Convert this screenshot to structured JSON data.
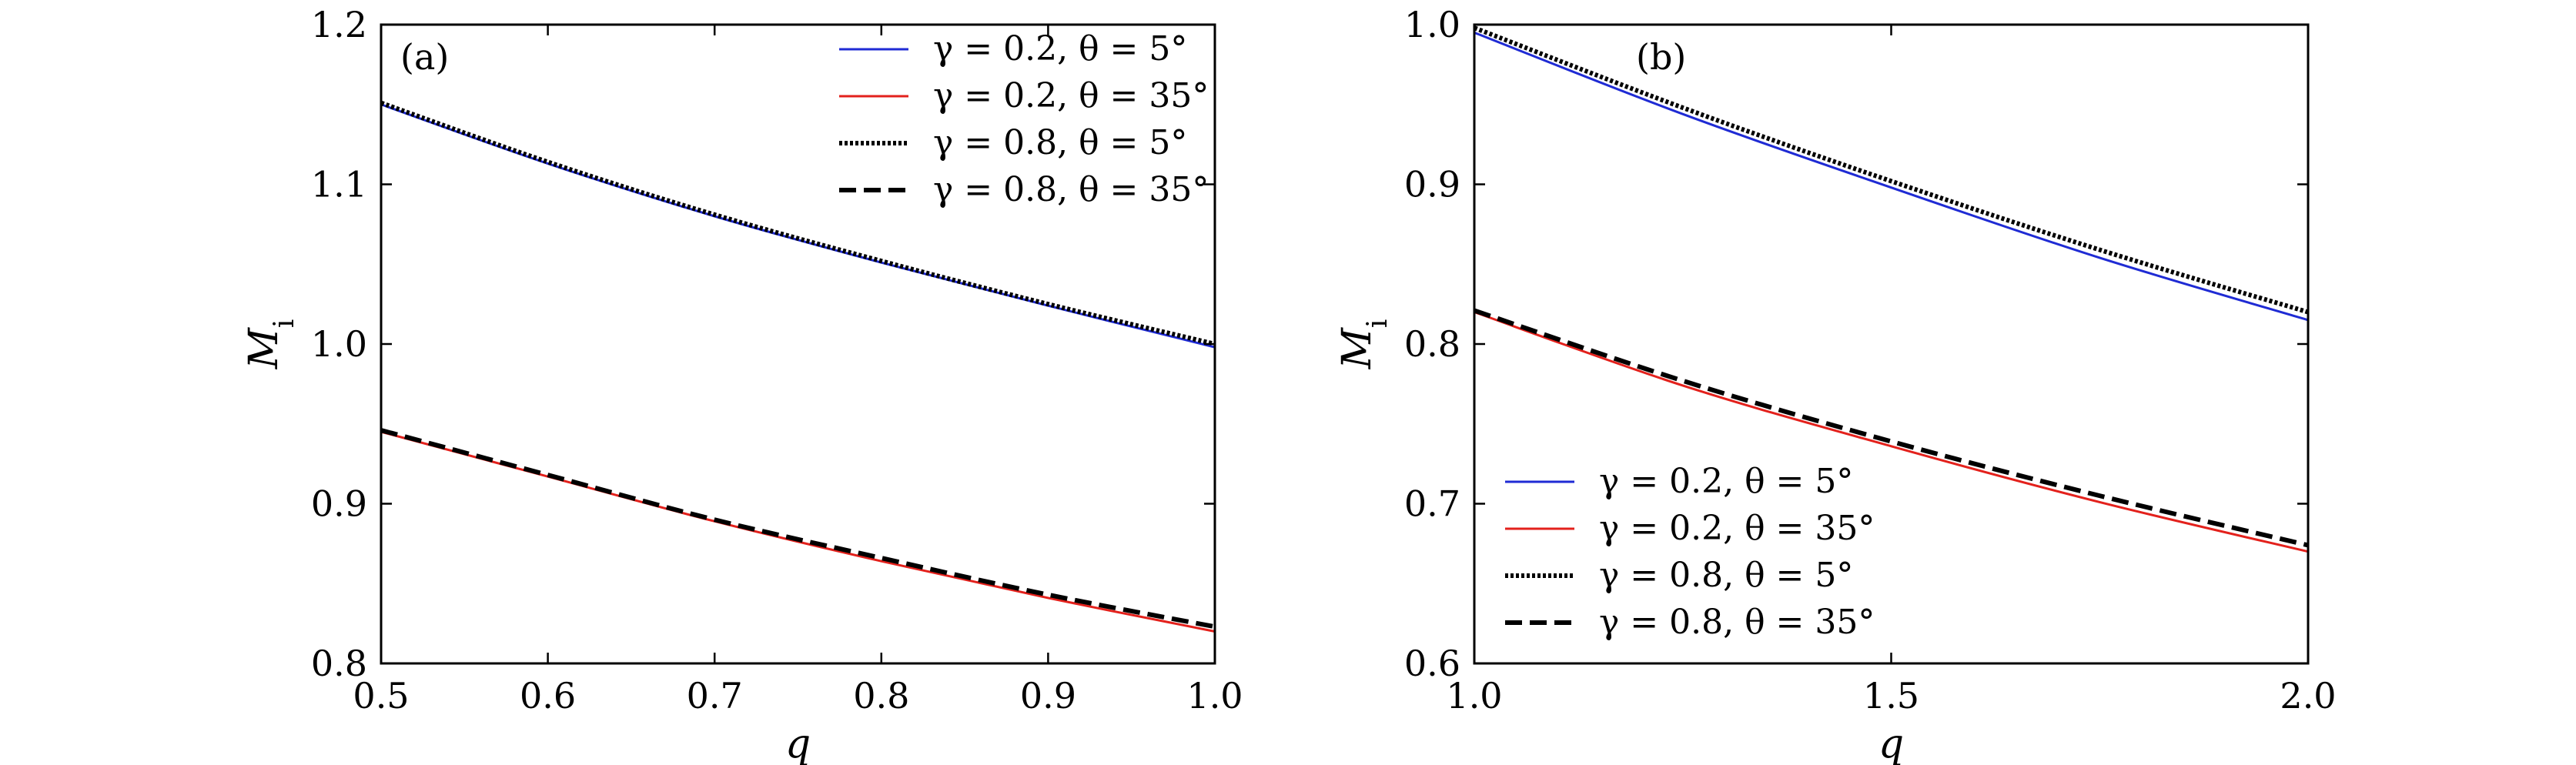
{
  "chart_data": [
    {
      "type": "line",
      "panel_label": "(a)",
      "xlabel": "q",
      "ylabel": "M",
      "ylabel_sub": "i",
      "xlim": [
        0.5,
        1.0
      ],
      "ylim": [
        0.8,
        1.2
      ],
      "xticks": [
        0.5,
        0.6,
        0.7,
        0.8,
        0.9,
        1.0
      ],
      "yticks": [
        0.8,
        0.9,
        1.0,
        1.1,
        1.2
      ],
      "xtick_labels": [
        "0.5",
        "0.6",
        "0.7",
        "0.8",
        "0.9",
        "1.0"
      ],
      "ytick_labels": [
        "0.8",
        "0.9",
        "1.0",
        "1.1",
        "1.2"
      ],
      "legend_position": "top-right",
      "series": [
        {
          "name": "γ = 0.2, θ = 5°",
          "color": "#1f2bd4",
          "style": "solid",
          "x": [
            0.5,
            0.6,
            0.7,
            0.8,
            0.9,
            1.0
          ],
          "y": [
            1.15,
            1.113,
            1.08,
            1.051,
            1.024,
            0.998
          ]
        },
        {
          "name": "γ = 0.2, θ = 35°",
          "color": "#e3211c",
          "style": "solid",
          "x": [
            0.5,
            0.6,
            0.7,
            0.8,
            0.9,
            1.0
          ],
          "y": [
            0.945,
            0.917,
            0.889,
            0.864,
            0.841,
            0.82
          ]
        },
        {
          "name": "γ = 0.8, θ = 5°",
          "color": "#000000",
          "style": "dotted",
          "x": [
            0.5,
            0.6,
            0.7,
            0.8,
            0.9,
            1.0
          ],
          "y": [
            1.151,
            1.114,
            1.081,
            1.052,
            1.025,
            1.0
          ]
        },
        {
          "name": "γ = 0.8, θ = 35°",
          "color": "#000000",
          "style": "dashed",
          "x": [
            0.5,
            0.6,
            0.7,
            0.8,
            0.9,
            1.0
          ],
          "y": [
            0.946,
            0.918,
            0.89,
            0.866,
            0.843,
            0.823
          ]
        }
      ]
    },
    {
      "type": "line",
      "panel_label": "(b)",
      "xlabel": "q",
      "ylabel": "M",
      "ylabel_sub": "i",
      "xlim": [
        1.0,
        2.0
      ],
      "ylim": [
        0.6,
        1.0
      ],
      "xticks": [
        1.0,
        1.5,
        2.0
      ],
      "yticks": [
        0.6,
        0.7,
        0.8,
        0.9,
        1.0
      ],
      "xtick_labels": [
        "1.0",
        "1.5",
        "2.0"
      ],
      "ytick_labels": [
        "0.6",
        "0.7",
        "0.8",
        "0.9",
        "1.0"
      ],
      "legend_position": "bottom-left",
      "series": [
        {
          "name": "γ = 0.2, θ = 5°",
          "color": "#1f2bd4",
          "style": "solid",
          "x": [
            1.0,
            1.25,
            1.5,
            1.75,
            2.0
          ],
          "y": [
            0.995,
            0.944,
            0.898,
            0.854,
            0.815
          ]
        },
        {
          "name": "γ = 0.2, θ = 35°",
          "color": "#e3211c",
          "style": "solid",
          "x": [
            1.0,
            1.25,
            1.5,
            1.75,
            2.0
          ],
          "y": [
            0.82,
            0.774,
            0.736,
            0.701,
            0.67
          ]
        },
        {
          "name": "γ = 0.8, θ = 5°",
          "color": "#000000",
          "style": "dotted",
          "x": [
            1.0,
            1.25,
            1.5,
            1.75,
            2.0
          ],
          "y": [
            0.998,
            0.948,
            0.902,
            0.859,
            0.82
          ]
        },
        {
          "name": "γ = 0.8, θ = 35°",
          "color": "#000000",
          "style": "dashed",
          "x": [
            1.0,
            1.25,
            1.5,
            1.75,
            2.0
          ],
          "y": [
            0.821,
            0.777,
            0.739,
            0.705,
            0.674
          ]
        }
      ]
    }
  ]
}
